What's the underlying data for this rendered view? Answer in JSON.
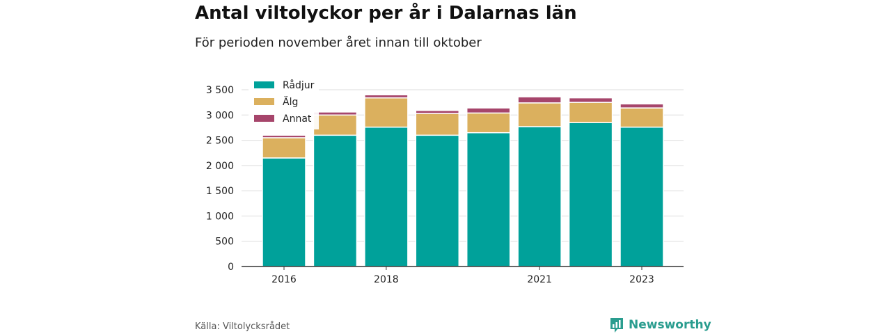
{
  "header": {
    "title": "Antal viltolyckor per år i Dalarnas län",
    "subtitle": "För perioden november året innan till oktober"
  },
  "footer": {
    "source": "Källa: Viltolycksrådet",
    "brand": "Newsworthy"
  },
  "colors": {
    "radjur": "#00a19a",
    "alg": "#dbb05e",
    "annat": "#a6456b",
    "grid": "#dddddd",
    "axis": "#333333",
    "brand": "#2a9d8f"
  },
  "chart_data": {
    "type": "bar",
    "stacked": true,
    "categories": [
      "2016",
      "2017",
      "2018",
      "2019",
      "2020",
      "2021",
      "2022",
      "2023"
    ],
    "x_tick_labels": [
      "2016",
      "",
      "2018",
      "",
      "",
      "2021",
      "",
      "2023"
    ],
    "y_ticks": [
      0,
      500,
      1000,
      1500,
      2000,
      2500,
      3000,
      3500
    ],
    "y_tick_labels": [
      "0",
      "500",
      "1 000",
      "1 500",
      "2 000",
      "2 500",
      "3 000",
      "3 500"
    ],
    "ylim": [
      0,
      3500
    ],
    "grid": true,
    "legend_position": "top-left",
    "series": [
      {
        "name": "Rådjur",
        "color": "#00a19a",
        "values": [
          2150,
          2600,
          2760,
          2600,
          2650,
          2770,
          2850,
          2760
        ]
      },
      {
        "name": "Älg",
        "color": "#dbb05e",
        "values": [
          400,
          400,
          580,
          430,
          390,
          470,
          400,
          380
        ]
      },
      {
        "name": "Annat",
        "color": "#a6456b",
        "values": [
          50,
          60,
          60,
          60,
          100,
          120,
          90,
          80
        ]
      }
    ]
  }
}
